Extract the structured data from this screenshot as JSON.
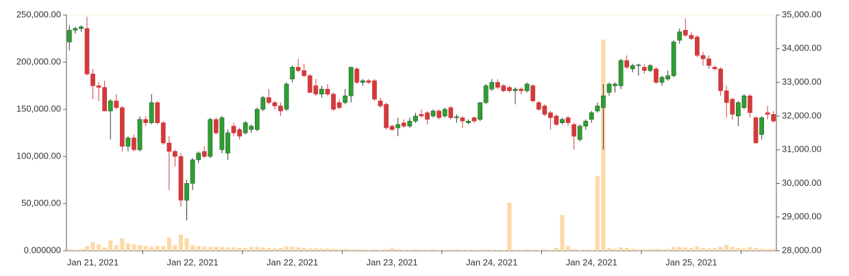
{
  "chart_data": {
    "type": "candlestick",
    "categories": [
      null,
      null,
      null,
      null,
      "Jan 21, 2021",
      null,
      null,
      null,
      null,
      null,
      null,
      null,
      null,
      null,
      null,
      null,
      null,
      null,
      null,
      null,
      null,
      "Jan 22, 2021",
      null,
      null,
      null,
      null,
      null,
      null,
      null,
      null,
      null,
      null,
      null,
      null,
      null,
      null,
      null,
      null,
      "Jan 22, 2021",
      null,
      null,
      null,
      null,
      null,
      null,
      null,
      null,
      null,
      null,
      null,
      null,
      null,
      null,
      null,
      null,
      "Jan 23, 2021",
      null,
      null,
      null,
      null,
      null,
      null,
      null,
      null,
      null,
      null,
      null,
      null,
      null,
      null,
      null,
      null,
      "Jan 24, 2021",
      null,
      null,
      null,
      null,
      null,
      null,
      null,
      null,
      null,
      null,
      null,
      null,
      null,
      null,
      null,
      null,
      "Jan 24, 2021",
      null,
      null,
      null,
      null,
      null,
      null,
      null,
      null,
      null,
      null,
      null,
      null,
      null,
      null,
      null,
      null,
      "Jan 25, 2021",
      null,
      null,
      null,
      null,
      null,
      null,
      null,
      null,
      null,
      null,
      null,
      null,
      null,
      null
    ],
    "ohlc": [
      [
        34200,
        34700,
        33950,
        34550
      ],
      [
        34550,
        34650,
        34450,
        34600
      ],
      [
        34600,
        34700,
        34500,
        34650
      ],
      [
        34600,
        34950,
        33200,
        33250
      ],
      [
        33250,
        33400,
        32500,
        32900
      ],
      [
        32900,
        33000,
        32450,
        32850
      ],
      [
        32850,
        33050,
        32150,
        32150
      ],
      [
        32150,
        32500,
        31300,
        32450
      ],
      [
        32450,
        32650,
        32200,
        32250
      ],
      [
        32250,
        32300,
        30950,
        31100
      ],
      [
        31100,
        31400,
        30950,
        31350
      ],
      [
        31350,
        31450,
        30950,
        31000
      ],
      [
        31000,
        32000,
        30950,
        31900
      ],
      [
        31900,
        32000,
        31700,
        31800
      ],
      [
        31800,
        32650,
        31750,
        32400
      ],
      [
        32400,
        32450,
        31750,
        31800
      ],
      [
        31800,
        31850,
        31150,
        31200
      ],
      [
        31200,
        31400,
        29800,
        30950
      ],
      [
        30950,
        31000,
        30500,
        30800
      ],
      [
        30800,
        30900,
        29300,
        29500
      ],
      [
        29500,
        30100,
        28900,
        30000
      ],
      [
        30000,
        30750,
        29800,
        30700
      ],
      [
        30700,
        30950,
        30600,
        30900
      ],
      [
        30950,
        31100,
        30750,
        30800
      ],
      [
        30800,
        31950,
        30750,
        31900
      ],
      [
        31900,
        31950,
        31450,
        31500
      ],
      [
        31000,
        32000,
        30900,
        31950
      ],
      [
        30900,
        31600,
        30700,
        31500
      ],
      [
        31700,
        31800,
        31400,
        31500
      ],
      [
        31600,
        31650,
        31300,
        31400
      ],
      [
        31500,
        31850,
        31450,
        31800
      ],
      [
        31600,
        31750,
        31500,
        31700
      ],
      [
        31600,
        32250,
        31550,
        32200
      ],
      [
        32200,
        32600,
        32150,
        32550
      ],
      [
        32550,
        32800,
        32350,
        32400
      ],
      [
        32400,
        32450,
        32200,
        32300
      ],
      [
        32300,
        32400,
        32000,
        32150
      ],
      [
        32200,
        33000,
        32150,
        32950
      ],
      [
        33100,
        33500,
        33000,
        33450
      ],
      [
        33450,
        33700,
        33300,
        33350
      ],
      [
        33350,
        33550,
        33150,
        33200
      ],
      [
        33200,
        33250,
        32700,
        32700
      ],
      [
        32900,
        33100,
        32600,
        32650
      ],
      [
        32650,
        32900,
        32550,
        32800
      ],
      [
        32800,
        32950,
        32600,
        32650
      ],
      [
        32650,
        32700,
        32150,
        32200
      ],
      [
        32400,
        32500,
        32200,
        32250
      ],
      [
        32400,
        32800,
        32350,
        32600
      ],
      [
        32600,
        33450,
        32400,
        33450
      ],
      [
        33400,
        33450,
        32950,
        33000
      ],
      [
        33000,
        33100,
        32900,
        33050
      ],
      [
        33050,
        33100,
        32950,
        33000
      ],
      [
        33050,
        33100,
        32450,
        32500
      ],
      [
        32450,
        32550,
        32250,
        32300
      ],
      [
        32350,
        32400,
        31600,
        31650
      ],
      [
        31700,
        31750,
        31550,
        31600
      ],
      [
        31650,
        31950,
        31400,
        31750
      ],
      [
        31800,
        31900,
        31650,
        31700
      ],
      [
        31700,
        31950,
        31650,
        31850
      ],
      [
        31850,
        32100,
        31800,
        32000
      ],
      [
        32050,
        32200,
        31950,
        32000
      ],
      [
        32100,
        32150,
        31750,
        31900
      ],
      [
        32000,
        32200,
        31950,
        32150
      ],
      [
        32150,
        32200,
        31900,
        31950
      ],
      [
        32000,
        32250,
        31950,
        32200
      ],
      [
        32250,
        32300,
        31900,
        31950
      ],
      [
        31950,
        32050,
        31800,
        31980
      ],
      [
        31950,
        32000,
        31650,
        31850
      ],
      [
        31800,
        31900,
        31750,
        31850
      ],
      [
        31950,
        32000,
        31800,
        31850
      ],
      [
        31900,
        32400,
        31850,
        32400
      ],
      [
        32400,
        32950,
        32350,
        32900
      ],
      [
        32800,
        33100,
        32750,
        33000
      ],
      [
        33000,
        33100,
        32800,
        32850
      ],
      [
        32900,
        32950,
        32700,
        32750
      ],
      [
        32850,
        32900,
        32700,
        32750
      ],
      [
        32750,
        32850,
        32350,
        32800
      ],
      [
        32800,
        32850,
        32650,
        32750
      ],
      [
        32750,
        33000,
        32700,
        32950
      ],
      [
        32900,
        32950,
        32400,
        32450
      ],
      [
        32400,
        32450,
        32150,
        32200
      ],
      [
        32300,
        32350,
        32000,
        32050
      ],
      [
        32100,
        32150,
        31600,
        31950
      ],
      [
        32000,
        32050,
        31700,
        31750
      ],
      [
        31800,
        31950,
        31750,
        31900
      ],
      [
        31950,
        32000,
        31700,
        31800
      ],
      [
        31750,
        31800,
        31000,
        31400
      ],
      [
        31300,
        31750,
        31250,
        31700
      ],
      [
        31700,
        31900,
        31600,
        31850
      ],
      [
        31900,
        32150,
        31800,
        32100
      ],
      [
        32150,
        32400,
        32100,
        32300
      ],
      [
        32250,
        32950,
        31000,
        32600
      ],
      [
        32700,
        33000,
        32600,
        32950
      ],
      [
        32900,
        33000,
        32700,
        32950
      ],
      [
        32900,
        33700,
        32800,
        33650
      ],
      [
        33650,
        33800,
        33400,
        33450
      ],
      [
        33400,
        33550,
        33300,
        33500
      ],
      [
        33500,
        33550,
        33200,
        33520
      ],
      [
        33450,
        33550,
        33250,
        33350
      ],
      [
        33350,
        33550,
        33300,
        33500
      ],
      [
        33400,
        33450,
        32950,
        33000
      ],
      [
        33000,
        33200,
        32900,
        33150
      ],
      [
        33100,
        33350,
        33050,
        33200
      ],
      [
        33200,
        34250,
        33150,
        34200
      ],
      [
        34250,
        34600,
        34150,
        34500
      ],
      [
        34550,
        34900,
        34350,
        34400
      ],
      [
        34400,
        34500,
        34250,
        34300
      ],
      [
        34350,
        34400,
        33750,
        33800
      ],
      [
        33800,
        33900,
        33500,
        33700
      ],
      [
        33700,
        33800,
        33400,
        33500
      ],
      [
        33450,
        33500,
        33350,
        33400
      ],
      [
        33400,
        33450,
        32600,
        32750
      ],
      [
        32750,
        32900,
        31950,
        32400
      ],
      [
        32500,
        32550,
        31900,
        32050
      ],
      [
        32000,
        32450,
        31700,
        32400
      ],
      [
        32250,
        32650,
        32200,
        32600
      ],
      [
        32600,
        32650,
        31950,
        32100
      ],
      [
        31950,
        32000,
        31200,
        31200
      ],
      [
        31450,
        32000,
        31300,
        31950
      ],
      [
        32100,
        32300,
        31900,
        32050
      ],
      [
        32050,
        32150,
        31800,
        31850
      ]
    ],
    "volume": [
      1500,
      1000,
      1500,
      5000,
      9000,
      7000,
      3500,
      11000,
      6000,
      13000,
      8000,
      7000,
      6000,
      5000,
      4000,
      5000,
      5000,
      14000,
      6000,
      17000,
      13000,
      6000,
      5000,
      4500,
      4000,
      4000,
      4000,
      3500,
      3500,
      3000,
      3000,
      4000,
      4000,
      3500,
      3000,
      2500,
      3000,
      4500,
      4500,
      3500,
      3000,
      2500,
      2500,
      2000,
      2500,
      2000,
      1500,
      2000,
      1500,
      1500,
      1500,
      1000,
      1500,
      1000,
      1500,
      3000,
      1500,
      1000,
      1000,
      1500,
      1000,
      1000,
      1500,
      1000,
      1000,
      1000,
      1500,
      1000,
      1000,
      1000,
      1000,
      1500,
      1000,
      1000,
      1000,
      51000,
      1000,
      1000,
      1500,
      1000,
      1000,
      1500,
      1000,
      3000,
      38000,
      5000,
      1500,
      1000,
      1500,
      1000,
      79000,
      224000,
      3000,
      2000,
      3500,
      3000,
      2000,
      1500,
      1500,
      1500,
      2000,
      1500,
      2000,
      4000,
      4000,
      3500,
      3000,
      4500,
      3000,
      2500,
      3000,
      4000,
      6000,
      4000,
      3000,
      2500,
      4000,
      3000,
      2000,
      1500,
      2000
    ],
    "up_color": "#2f9e34",
    "down_color": "#d23a3c",
    "volume_color": "#fdd9a8",
    "ylim": [
      0,
      250000
    ],
    "yticks": [
      {
        "value": 0,
        "label": "0.000000"
      },
      {
        "value": 50000,
        "label": "50,000.00"
      },
      {
        "value": 100000,
        "label": "100,000.00"
      },
      {
        "value": 150000,
        "label": "150,000.00"
      },
      {
        "value": 200000,
        "label": "200,000.00"
      },
      {
        "value": 250000,
        "label": "250,000.00"
      }
    ],
    "y2lim": [
      28000,
      35000
    ],
    "y2ticks": [
      {
        "value": 28000,
        "label": "28,000.00"
      },
      {
        "value": 29000,
        "label": "29,000.00"
      },
      {
        "value": 30000,
        "label": "30,000.00"
      },
      {
        "value": 31000,
        "label": "31,000.00"
      },
      {
        "value": 32000,
        "label": "32,000.00"
      },
      {
        "value": 33000,
        "label": "33,000.00"
      },
      {
        "value": 34000,
        "label": "34,000.00"
      },
      {
        "value": 35000,
        "label": "35,000.00"
      }
    ]
  }
}
